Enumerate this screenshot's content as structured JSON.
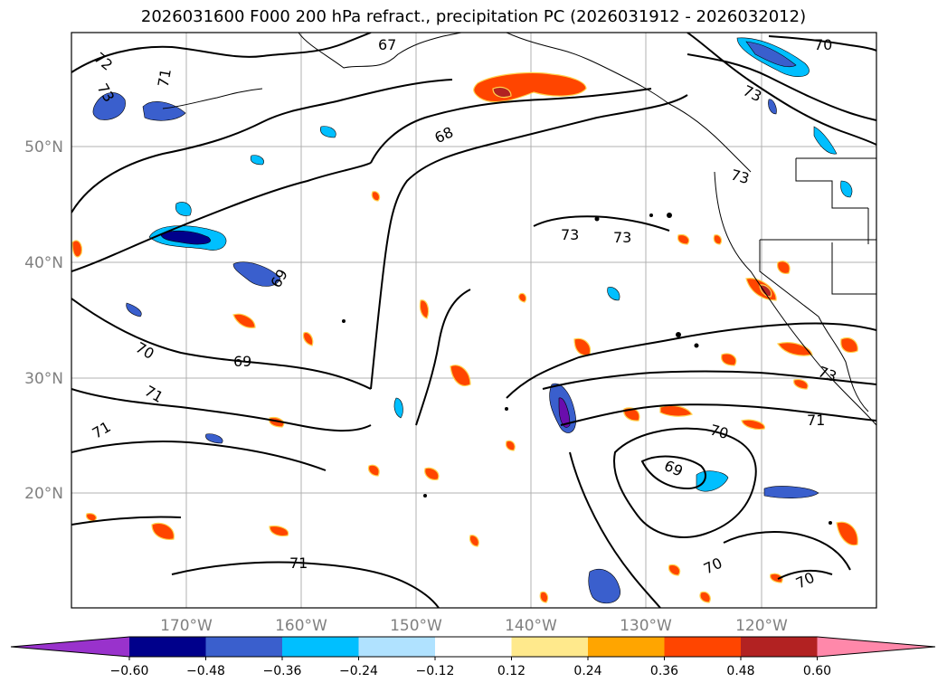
{
  "title": "2026031600 F000 200 hPa refract., precipitation PC (2026031912 - 2026032012)",
  "lat_labels": [
    "50°N",
    "40°N",
    "30°N",
    "20°N"
  ],
  "lon_labels": [
    "170°W",
    "160°W",
    "150°W",
    "140°W",
    "130°W",
    "120°W"
  ],
  "colorbar": {
    "ticks": [
      "−0.60",
      "−0.48",
      "−0.36",
      "−0.24",
      "−0.12",
      "0.12",
      "0.24",
      "0.36",
      "0.48",
      "0.60"
    ],
    "colors": [
      "#9932cc",
      "#00008b",
      "#3a5fcd",
      "#00bfff",
      "#b0e2ff",
      "#ffffff",
      "#ffe98c",
      "#ffa500",
      "#ff4500",
      "#b22222",
      "#ff88aa"
    ]
  },
  "contour_labels": [
    "72",
    "73",
    "71",
    "67",
    "68",
    "70",
    "73",
    "73",
    "73",
    "73",
    "69",
    "70",
    "69",
    "71",
    "71",
    "70",
    "71",
    "73",
    "69",
    "71",
    "70",
    "70"
  ]
}
